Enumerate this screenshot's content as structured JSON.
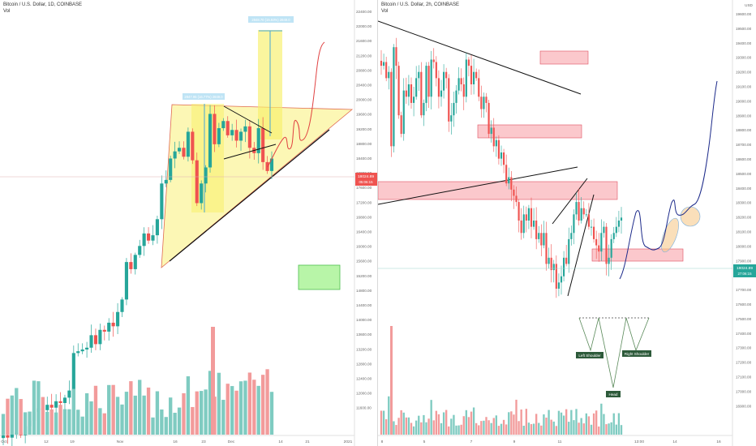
{
  "left": {
    "title": "Bitcoin / U.S. Dollar, 1D, COINBASE",
    "vol_label": "Vol",
    "x_ticks": [
      "Oct",
      "12",
      "19",
      "Nov",
      "16",
      "23",
      "Dec",
      "14",
      "21",
      "2021"
    ],
    "y_ticks": [
      "22400.00",
      "22000.00",
      "21600.00",
      "21200.00",
      "20800.00",
      "20400.00",
      "20000.00",
      "19600.00",
      "19200.00",
      "18800.00",
      "18400.00",
      "18000.00",
      "17600.00",
      "17200.00",
      "16800.00",
      "16400.00",
      "16000.00",
      "15600.00",
      "15200.00",
      "14800.00",
      "14400.00",
      "14000.00",
      "13600.00",
      "13200.00",
      "12800.00",
      "12400.00",
      "12000.00",
      "11600.00"
    ],
    "price_tag": "18024.89",
    "price_tag_time": "05:06:15",
    "measure_label_top": "2848.70 (15.93%) 2849.0",
    "measure_label_left": "2847.95 (16.77%) 2849.0"
  },
  "right": {
    "title": "Bitcoin / U.S. Dollar, 2h, COINBASE",
    "vol_label": "Vol",
    "x_ticks": [
      "8",
      "5",
      "7",
      "9",
      "11",
      "13:00",
      "14",
      "16"
    ],
    "y_ticks": [
      "19600.00",
      "19500.00",
      "19400.00",
      "19300.00",
      "19200.00",
      "19100.00",
      "19000.00",
      "18900.00",
      "18800.00",
      "18700.00",
      "18600.00",
      "18500.00",
      "18400.00",
      "18300.00",
      "18200.00",
      "18100.00",
      "18000.00",
      "17900.00",
      "17800.00",
      "17700.00",
      "17600.00",
      "17500.00",
      "17400.00",
      "17300.00",
      "17200.00",
      "17100.00",
      "17000.00",
      "16900.00"
    ],
    "currency": "USD",
    "price_tag": "18024.89",
    "price_tag_time": "27:06:15",
    "left_shoulder": "Left Shoulder",
    "right_shoulder": "Right Shoulder",
    "head": "Head"
  },
  "colors": {
    "up": "#26a69a",
    "down": "#ef5350",
    "vol_up": "#7fcbc1",
    "vol_down": "#f29b9b",
    "zone_fill": "#fbc8cc",
    "zone_stroke": "#e05060",
    "triangle_fill": "#fbf6a8",
    "green_box": "#b8f5a8",
    "trend_line": "#111111",
    "projection_red": "#e04040",
    "projection_blue": "#1c2a8a",
    "highlight_ellipse": "#f7c98c"
  },
  "chart_data": [
    {
      "type": "candlestick",
      "title": "Bitcoin / U.S. Dollar, 1D, COINBASE",
      "xlabel": "",
      "ylabel": "",
      "ylim": [
        11300,
        22500
      ],
      "closes": [
        10650,
        10580,
        10680,
        10720,
        10650,
        10900,
        11050,
        11300,
        11400,
        11350,
        11500,
        11420,
        11600,
        11550,
        11700,
        11900,
        12950,
        13000,
        13050,
        13100,
        13450,
        13200,
        13600,
        13550,
        13800,
        13700,
        14100,
        14450,
        15500,
        15300,
        15700,
        15950,
        16300,
        16100,
        16250,
        16700,
        17700,
        17800,
        18400,
        18600,
        18700,
        18450,
        19150,
        18350,
        17150,
        17700,
        18150,
        19650,
        18800,
        19250,
        19450,
        19050,
        19200,
        18900,
        19150,
        19300,
        18700,
        18550,
        19250,
        18300,
        18050,
        18400
      ]
    },
    {
      "type": "candlestick",
      "title": "Bitcoin / U.S. Dollar, 2h, COINBASE",
      "xlabel": "",
      "ylabel": "",
      "ylim": [
        16900,
        19650
      ],
      "closes": [
        19250,
        19280,
        19150,
        19200,
        18600,
        19400,
        19250,
        18850,
        18700,
        19050,
        19000,
        19100,
        18950,
        19000,
        19150,
        19200,
        18850,
        18950,
        19250,
        19000,
        19300,
        19280,
        19150,
        19000,
        19050,
        19200,
        19150,
        18800,
        18850,
        18950,
        19050,
        19150,
        19100,
        19000,
        19300,
        19250,
        19100,
        19200,
        19150,
        19000,
        18900,
        19000,
        18950,
        18700,
        18750,
        18600,
        18650,
        18500,
        18550,
        18450,
        18300,
        18350,
        18250,
        18200,
        18150,
        18000,
        17900,
        18050,
        18000,
        18100,
        17950,
        18000,
        17850,
        17900,
        17800,
        17900,
        17650,
        17700,
        17600,
        17650,
        17450,
        17500,
        17550,
        17700,
        17650,
        17850,
        17900,
        18050,
        18150,
        18000,
        18100,
        18050,
        18050,
        17950,
        17950,
        17850,
        17800,
        17750,
        17900,
        17950,
        17650,
        17700,
        17850,
        17900,
        17950,
        18000,
        18024
      ]
    }
  ]
}
